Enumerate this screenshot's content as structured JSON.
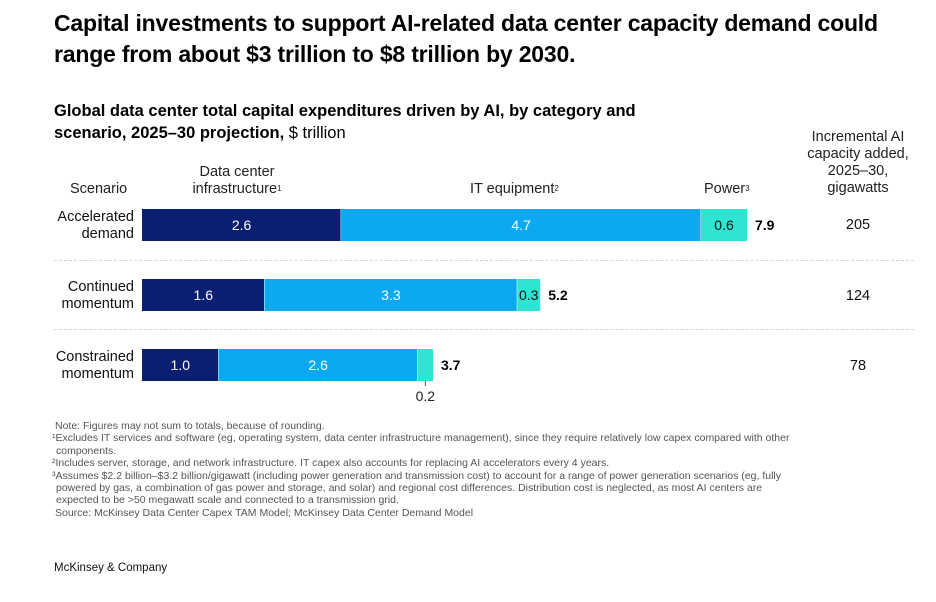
{
  "headline": "Capital investments to support AI-related data center capacity demand could range from about $3 trillion to $8 trillion by 2030.",
  "subtitle_bold": "Global data center total capital expenditures driven by AI, by category and scenario, 2025–30 projection,",
  "subtitle_unit": " $ trillion",
  "headers": {
    "scenario": "Scenario",
    "dc_infra_line1": "Data center",
    "dc_infra_line2": "infrastructure",
    "dc_infra_sup": "1",
    "it_equipment": "IT equipment",
    "it_sup": "2",
    "power": "Power",
    "power_sup": "3",
    "capacity_line1": "Incremental AI",
    "capacity_line2": "capacity added,",
    "capacity_line3": "2025–30,",
    "capacity_line4": "gigawatts"
  },
  "rows": [
    {
      "line1": "Accelerated",
      "line2": "demand",
      "capacity": "205"
    },
    {
      "line1": "Continued",
      "line2": "momentum",
      "capacity": "124"
    },
    {
      "line1": "Constrained",
      "line2": "momentum",
      "capacity": "78"
    }
  ],
  "colors": {
    "dc_infra": "#0b1f72",
    "it_equipment": "#0ca8f0",
    "power": "#2de5d0"
  },
  "chart_data": {
    "type": "bar",
    "orientation": "horizontal",
    "stacked": true,
    "categories": [
      "Accelerated demand",
      "Continued momentum",
      "Constrained momentum"
    ],
    "series": [
      {
        "name": "Data center infrastructure",
        "values": [
          2.6,
          1.6,
          1.0
        ],
        "labels": [
          "2.6",
          "1.6",
          "1.0"
        ]
      },
      {
        "name": "IT equipment",
        "values": [
          4.7,
          3.3,
          2.6
        ],
        "labels": [
          "4.7",
          "3.3",
          "2.6"
        ]
      },
      {
        "name": "Power",
        "values": [
          0.6,
          0.3,
          0.2
        ],
        "labels": [
          "0.6",
          "0.3",
          "0.2"
        ]
      }
    ],
    "totals": [
      7.9,
      5.2,
      3.7
    ],
    "total_labels": [
      "7.9",
      "5.2",
      "3.7"
    ],
    "xlim": [
      0,
      7.9
    ],
    "grid": false,
    "legend": "column headers above bars"
  },
  "notes": {
    "n0": "Note: Figures may not sum to totals, because of rounding.",
    "n1": "¹Excludes IT services and software (eg, operating system, data center infrastructure management), since they require relatively low capex compared with other",
    "n1b": "components.",
    "n2": "²Includes server, storage, and network infrastructure. IT capex also accounts for replacing AI accelerators every 4 years.",
    "n3": "³Assumes $2.2 billion–$3.2 billion/gigawatt (including power generation and transmission cost) to account for a range of power generation scenarios (eg, fully",
    "n3b": "powered by gas, a combination of gas power and storage, and solar) and regional cost differences. Distribution cost is neglected, as most AI centers are",
    "n3c": "expected to be >50 megawatt scale and connected to a transmission grid.",
    "source": "Source: McKinsey Data Center Capex TAM Model; McKinsey Data Center Demand Model"
  },
  "brand": "McKinsey & Company"
}
